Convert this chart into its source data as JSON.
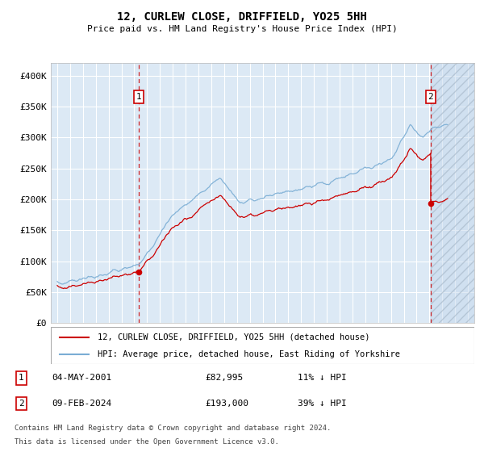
{
  "title": "12, CURLEW CLOSE, DRIFFIELD, YO25 5HH",
  "subtitle": "Price paid vs. HM Land Registry's House Price Index (HPI)",
  "hpi_color": "#7aadd4",
  "price_color": "#cc0000",
  "plot_bg_color": "#dce9f5",
  "ylim": [
    0,
    420000
  ],
  "yticks": [
    0,
    50000,
    100000,
    150000,
    200000,
    250000,
    300000,
    350000,
    400000
  ],
  "ytick_labels": [
    "£0",
    "£50K",
    "£100K",
    "£150K",
    "£200K",
    "£250K",
    "£300K",
    "£350K",
    "£400K"
  ],
  "xmin": 1994.5,
  "xmax": 2027.5,
  "sale1_x": 2001.35,
  "sale1_y": 82995,
  "sale2_x": 2024.1,
  "sale2_y": 193000,
  "sale1_date": "04-MAY-2001",
  "sale1_price": "£82,995",
  "sale1_hpi": "11% ↓ HPI",
  "sale2_date": "09-FEB-2024",
  "sale2_price": "£193,000",
  "sale2_hpi": "39% ↓ HPI",
  "legend_line1": "12, CURLEW CLOSE, DRIFFIELD, YO25 5HH (detached house)",
  "legend_line2": "HPI: Average price, detached house, East Riding of Yorkshire",
  "footer1": "Contains HM Land Registry data © Crown copyright and database right 2024.",
  "footer2": "This data is licensed under the Open Government Licence v3.0.",
  "hatch_start": 2024.12
}
